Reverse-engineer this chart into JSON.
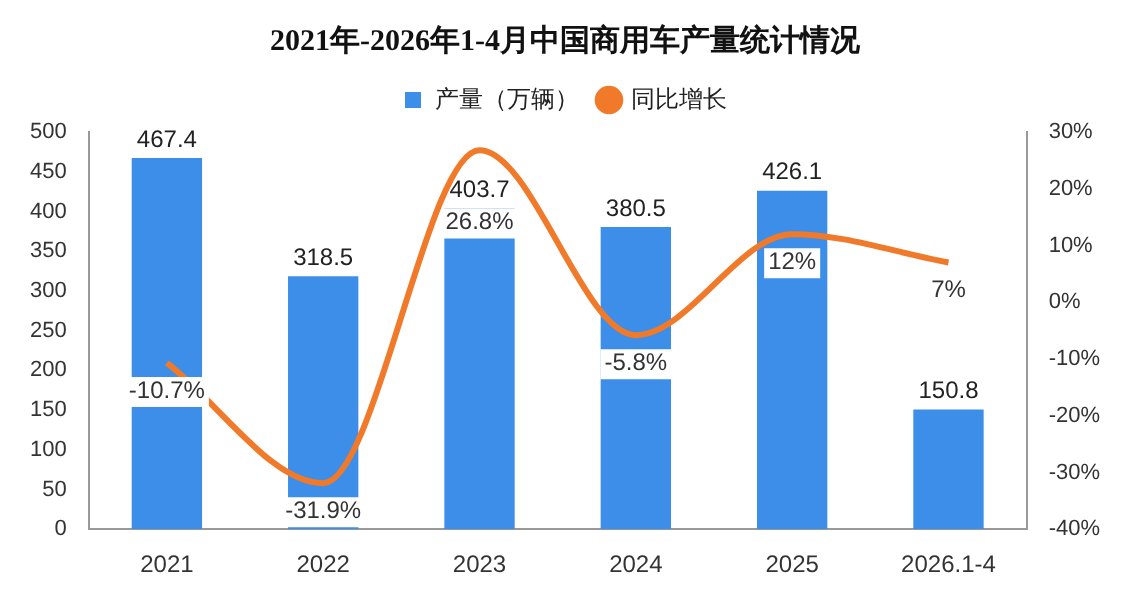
{
  "chart_data": {
    "type": "bar",
    "title": "2021年-2026年1-4月中国商用车产量统计情况",
    "categories": [
      "2021",
      "2022",
      "2023",
      "2024",
      "2025",
      "2026.1-4"
    ],
    "series": [
      {
        "name": "产量（万辆）",
        "color": "#3d8ee8",
        "values": [
          467.4,
          318.5,
          403.7,
          380.5,
          426.1,
          150.8
        ],
        "value_labels": [
          "467.4",
          "318.5",
          "403.7",
          "380.5",
          "426.1",
          "150.8"
        ]
      },
      {
        "name": "同比增长",
        "type": "line",
        "axis": "y2",
        "color": "#f07a2a",
        "values": [
          -10.7,
          -31.9,
          26.8,
          -5.8,
          12,
          7
        ],
        "value_labels": [
          "-10.7%",
          "-31.9%",
          "26.8%",
          "-5.8%",
          "12%",
          "7%"
        ]
      }
    ],
    "ylim": [
      0,
      500
    ],
    "yticks": [
      0,
      50,
      100,
      150,
      200,
      250,
      300,
      350,
      400,
      450,
      500
    ],
    "y2lim": [
      -40,
      30
    ],
    "y2ticks": [
      {
        "value": -40,
        "label": "-40%"
      },
      {
        "value": -30,
        "label": "-30%"
      },
      {
        "value": -20,
        "label": "-20%"
      },
      {
        "value": -10,
        "label": "-10%"
      },
      {
        "value": 0,
        "label": "0%"
      },
      {
        "value": 10,
        "label": "10%"
      },
      {
        "value": 20,
        "label": "20%"
      },
      {
        "value": 30,
        "label": "30%"
      }
    ],
    "legend": "top",
    "grid": false,
    "marker": "none",
    "line_style": "solid"
  }
}
